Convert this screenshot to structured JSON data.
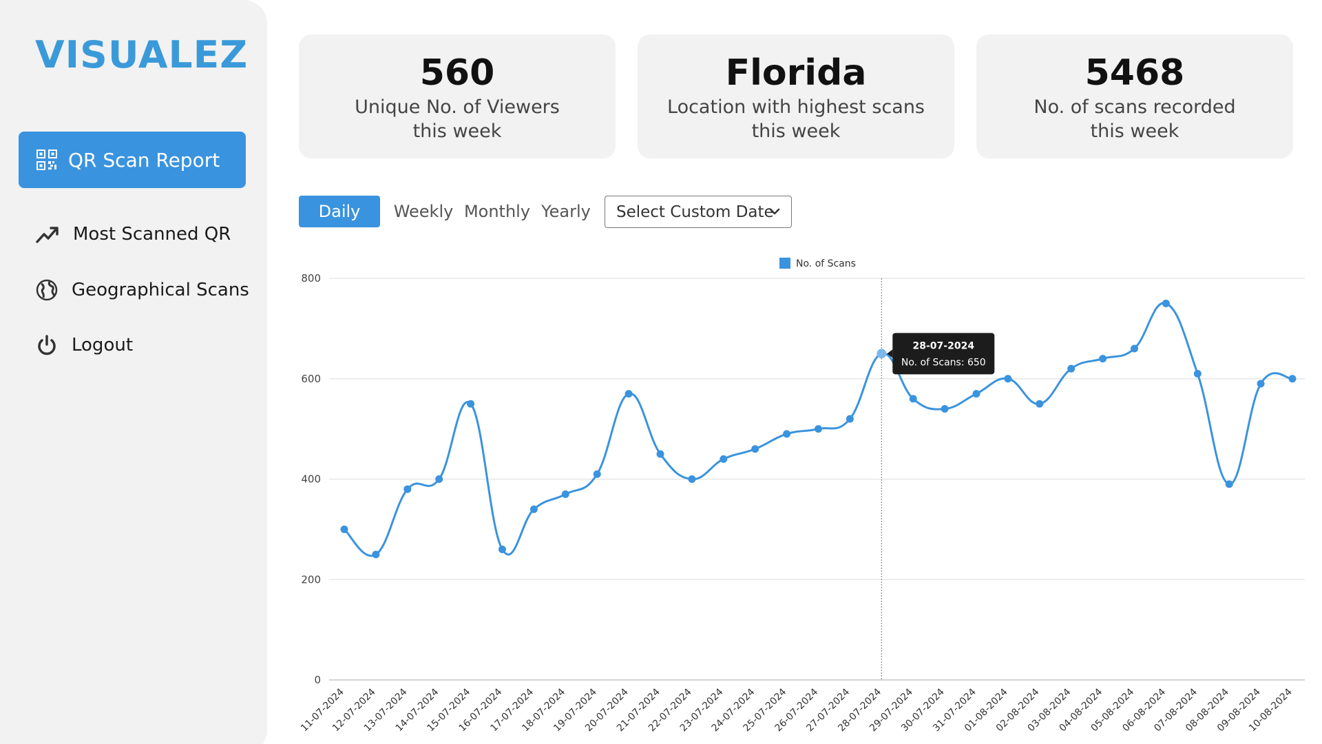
{
  "brand": {
    "logo": "VISUALEZ",
    "accent": "#3a93de"
  },
  "sidebar": {
    "active": {
      "label": "QR Scan Report",
      "icon": "qr-code-icon"
    },
    "items": [
      {
        "label": "Most Scanned QR",
        "icon": "trending-up-icon"
      },
      {
        "label": "Geographical Scans",
        "icon": "globe-icon"
      },
      {
        "label": "Logout",
        "icon": "power-icon"
      }
    ]
  },
  "stats": [
    {
      "value": "560",
      "desc1": "Unique No. of Viewers",
      "desc2": "this week"
    },
    {
      "value": "Florida",
      "desc1": "Location with highest scans",
      "desc2": "this week"
    },
    {
      "value": "5468",
      "desc1": "No. of scans recorded",
      "desc2": "this week"
    }
  ],
  "range_tabs": {
    "daily": "Daily",
    "weekly": "Weekly",
    "monthly": "Monthly",
    "yearly": "Yearly",
    "active": "Daily"
  },
  "custom_date": {
    "label": "Select Custom Date"
  },
  "chart_data": {
    "type": "line",
    "title": "",
    "xlabel": "",
    "ylabel": "",
    "ylim": [
      0,
      800
    ],
    "yticks": [
      "0",
      "200",
      "400",
      "600",
      "800"
    ],
    "grid": true,
    "legend": "top-center",
    "categories": [
      "11-07-2024",
      "12-07-2024",
      "13-07-2024",
      "14-07-2024",
      "15-07-2024",
      "16-07-2024",
      "17-07-2024",
      "18-07-2024",
      "19-07-2024",
      "20-07-2024",
      "21-07-2024",
      "22-07-2024",
      "23-07-2024",
      "24-07-2024",
      "25-07-2024",
      "26-07-2024",
      "27-07-2024",
      "28-07-2024",
      "29-07-2024",
      "30-07-2024",
      "31-07-2024",
      "01-08-2024",
      "02-08-2024",
      "03-08-2024",
      "04-08-2024",
      "05-08-2024",
      "06-08-2024",
      "07-08-2024",
      "08-08-2024",
      "09-08-2024",
      "10-08-2024"
    ],
    "series": [
      {
        "name": "No. of Scans",
        "color": "#3a93de",
        "values": [
          300,
          250,
          380,
          400,
          550,
          260,
          340,
          370,
          410,
          570,
          450,
          400,
          440,
          460,
          490,
          500,
          520,
          650,
          560,
          540,
          570,
          600,
          550,
          620,
          640,
          660,
          750,
          610,
          390,
          590,
          600
        ]
      }
    ],
    "tooltip": {
      "date": "28-07-2024",
      "text": "No. of Scans: 650"
    }
  }
}
